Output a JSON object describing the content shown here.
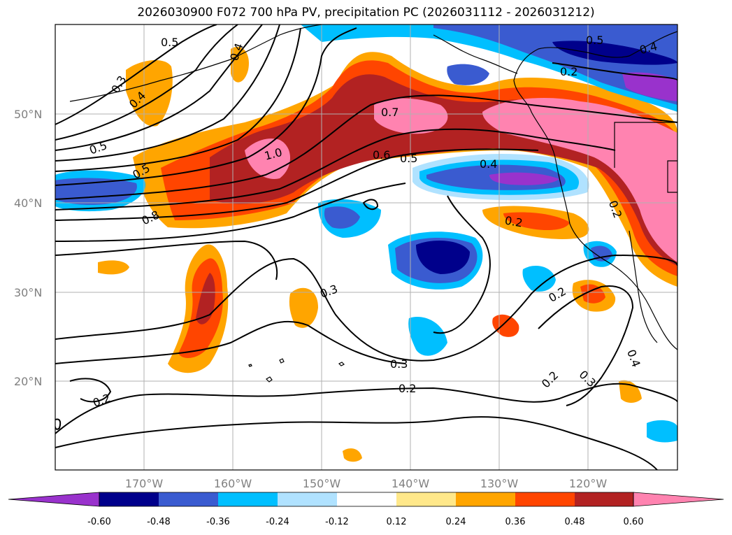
{
  "title": "2026030900 F072 700 hPa PV, precipitation PC (2026031112 - 2026031212)",
  "map": {
    "lat_labels": [
      "50°N",
      "40°N",
      "30°N",
      "20°N"
    ],
    "lon_labels": [
      "170°W",
      "160°W",
      "150°W",
      "140°W",
      "130°W",
      "120°W"
    ],
    "contour_labels": [
      "0.5",
      "0.3",
      "0.4",
      "0.5",
      "0.5",
      "0.8",
      "1.0",
      "0.7",
      "0.6",
      "0.5",
      "0.4",
      "0.2",
      "0.5",
      "0.4",
      "0.2",
      "0.2",
      "0.3",
      "0.3",
      "0.2",
      "0.2",
      "0.2",
      "0.3",
      "0.4",
      "0.2",
      "0.4"
    ],
    "colors": {
      "land_outline": "#000000",
      "grid": "#b0b0b0"
    }
  },
  "colorbar": {
    "labels": [
      "-0.60",
      "-0.48",
      "-0.36",
      "-0.24",
      "-0.12",
      "0.12",
      "0.24",
      "0.36",
      "0.48",
      "0.60"
    ],
    "colors": [
      "#9932cc",
      "#00008b",
      "#3a5bd0",
      "#00bfff",
      "#b0e2ff",
      "#ffffff",
      "#ffe88a",
      "#ffa500",
      "#ff4500",
      "#b22222",
      "#ff83b0"
    ]
  }
}
